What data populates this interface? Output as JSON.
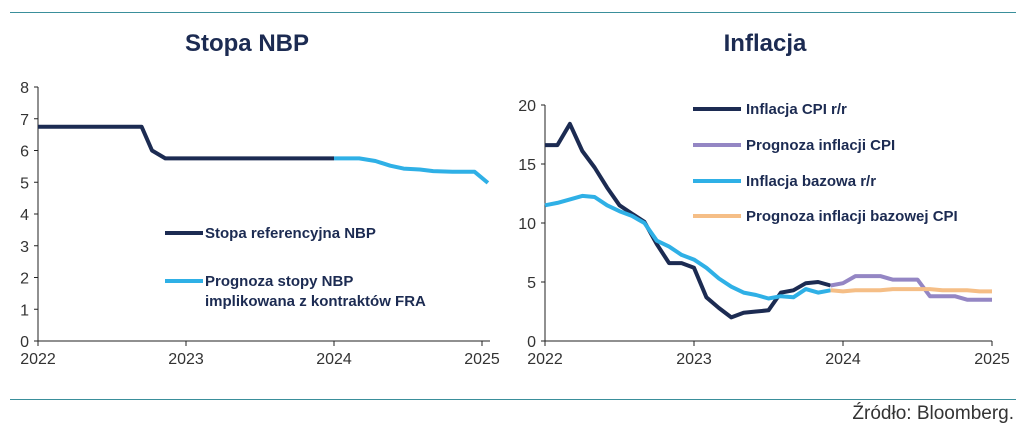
{
  "source": "Źródło: Bloomberg.",
  "colors": {
    "navy": "#1c2b52",
    "light_blue": "#2fb0e6",
    "purple": "#9486c4",
    "orange": "#f5be86",
    "rule": "#3a8f9b"
  },
  "chart_data": [
    {
      "type": "line",
      "title": "Stopa NBP",
      "xlabel": "",
      "ylabel": "",
      "xlim": [
        2022,
        2025.05
      ],
      "ylim": [
        0,
        8
      ],
      "yticks": [
        0,
        1,
        2,
        3,
        4,
        5,
        6,
        7,
        8
      ],
      "xticks": [
        2022,
        2023,
        2024,
        2025
      ],
      "xtick_labels": [
        "2022",
        "2023",
        "2024",
        "2025"
      ],
      "grid": false,
      "legend_position": "center",
      "series": [
        {
          "name": "Stopa referencyjna NBP",
          "color": "#1c2b52",
          "x": [
            2022.0,
            2022.7,
            2022.77,
            2022.86,
            2023.2,
            2023.6,
            2024.0
          ],
          "y": [
            6.75,
            6.75,
            6.0,
            5.75,
            5.75,
            5.75,
            5.75
          ]
        },
        {
          "name": "Prognoza stopy NBP implikowana z kontraktów FRA",
          "color": "#2fb0e6",
          "x": [
            2024.0,
            2024.17,
            2024.28,
            2024.38,
            2024.47,
            2024.58,
            2024.67,
            2024.8,
            2024.95,
            2025.04
          ],
          "y": [
            5.75,
            5.75,
            5.67,
            5.52,
            5.43,
            5.4,
            5.35,
            5.33,
            5.33,
            4.98
          ]
        }
      ]
    },
    {
      "type": "line",
      "title": "Inflacja",
      "xlabel": "",
      "ylabel": "",
      "xlim": [
        2022,
        2025
      ],
      "ylim": [
        0,
        20
      ],
      "yticks": [
        0,
        5,
        10,
        15,
        20
      ],
      "xticks": [
        2022,
        2023,
        2024,
        2025
      ],
      "xtick_labels": [
        "2022",
        "2023",
        "2024",
        "2025"
      ],
      "grid": false,
      "legend_position": "top-right",
      "series": [
        {
          "name": "Inflacja CPI r/r",
          "color": "#1c2b52",
          "x": [
            2022.0,
            2022.083,
            2022.167,
            2022.25,
            2022.333,
            2022.417,
            2022.5,
            2022.583,
            2022.667,
            2022.75,
            2022.833,
            2022.917,
            2023.0,
            2023.083,
            2023.167,
            2023.25,
            2023.333,
            2023.417,
            2023.5,
            2023.583,
            2023.667,
            2023.75,
            2023.833,
            2023.917
          ],
          "y": [
            16.6,
            16.6,
            18.4,
            16.1,
            14.7,
            13.0,
            11.5,
            10.8,
            10.1,
            8.2,
            6.6,
            6.6,
            6.2,
            3.7,
            2.8,
            2.0,
            2.4,
            2.5,
            2.6,
            4.1,
            4.3,
            4.9,
            5.0,
            4.7
          ]
        },
        {
          "name": "Prognoza inflacji CPI",
          "color": "#9486c4",
          "x": [
            2023.917,
            2024.0,
            2024.083,
            2024.167,
            2024.25,
            2024.333,
            2024.417,
            2024.5,
            2024.583,
            2024.667,
            2024.75,
            2024.833,
            2024.917,
            2025.0
          ],
          "y": [
            4.7,
            4.9,
            5.5,
            5.5,
            5.5,
            5.2,
            5.2,
            5.2,
            3.8,
            3.8,
            3.8,
            3.5,
            3.5,
            3.5
          ]
        },
        {
          "name": "Inflacja bazowa r/r",
          "color": "#2fb0e6",
          "x": [
            2022.0,
            2022.083,
            2022.167,
            2022.25,
            2022.333,
            2022.417,
            2022.5,
            2022.583,
            2022.667,
            2022.75,
            2022.833,
            2022.917,
            2023.0,
            2023.083,
            2023.167,
            2023.25,
            2023.333,
            2023.417,
            2023.5,
            2023.583,
            2023.667,
            2023.75,
            2023.833,
            2023.917
          ],
          "y": [
            11.5,
            11.7,
            12.0,
            12.3,
            12.2,
            11.5,
            11.0,
            10.6,
            10.0,
            8.5,
            8.0,
            7.3,
            6.9,
            6.2,
            5.3,
            4.6,
            4.1,
            3.9,
            3.6,
            3.8,
            3.7,
            4.4,
            4.1,
            4.3
          ]
        },
        {
          "name": "Prognoza inflacji bazowej CPI",
          "color": "#f5be86",
          "x": [
            2023.917,
            2024.0,
            2024.083,
            2024.167,
            2024.25,
            2024.333,
            2024.417,
            2024.5,
            2024.583,
            2024.667,
            2024.75,
            2024.833,
            2024.917,
            2025.0
          ],
          "y": [
            4.3,
            4.2,
            4.3,
            4.3,
            4.3,
            4.4,
            4.4,
            4.4,
            4.4,
            4.3,
            4.3,
            4.3,
            4.2,
            4.2
          ]
        }
      ]
    }
  ]
}
